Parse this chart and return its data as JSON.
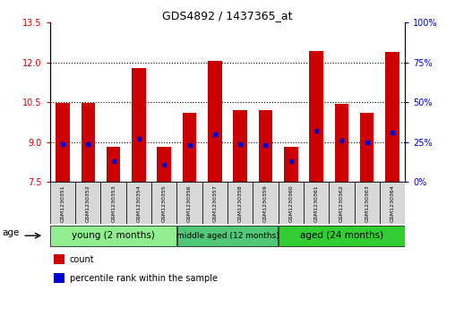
{
  "title": "GDS4892 / 1437365_at",
  "samples": [
    "GSM1230351",
    "GSM1230352",
    "GSM1230353",
    "GSM1230354",
    "GSM1230355",
    "GSM1230356",
    "GSM1230357",
    "GSM1230358",
    "GSM1230359",
    "GSM1230360",
    "GSM1230361",
    "GSM1230362",
    "GSM1230363",
    "GSM1230364"
  ],
  "counts": [
    10.47,
    10.48,
    8.82,
    11.78,
    8.82,
    10.1,
    12.07,
    10.2,
    10.2,
    8.83,
    12.42,
    10.46,
    10.1,
    12.4
  ],
  "percentiles": [
    24,
    24,
    13,
    27,
    11,
    23,
    30,
    24,
    23,
    13,
    32,
    26,
    25,
    31
  ],
  "ymin": 7.5,
  "ymax": 13.5,
  "yticks": [
    7.5,
    9.0,
    10.5,
    12.0,
    13.5
  ],
  "yright_ticks": [
    0,
    25,
    50,
    75,
    100
  ],
  "bar_color": "#CC0000",
  "percentile_color": "#0000CC",
  "bar_bottom": 7.5,
  "groups": [
    {
      "label": "young (2 months)",
      "start": 0,
      "end": 5,
      "color": "#90EE90"
    },
    {
      "label": "middle aged (12 months)",
      "start": 5,
      "end": 9,
      "color": "#50C878"
    },
    {
      "label": "aged (24 months)",
      "start": 9,
      "end": 14,
      "color": "#32CD32"
    }
  ],
  "legend_items": [
    {
      "label": "count",
      "color": "#CC0000"
    },
    {
      "label": "percentile rank within the sample",
      "color": "#0000CC"
    }
  ],
  "age_label": "age",
  "cell_bg": "#D8D8D8",
  "plot_bg": "#FFFFFF"
}
